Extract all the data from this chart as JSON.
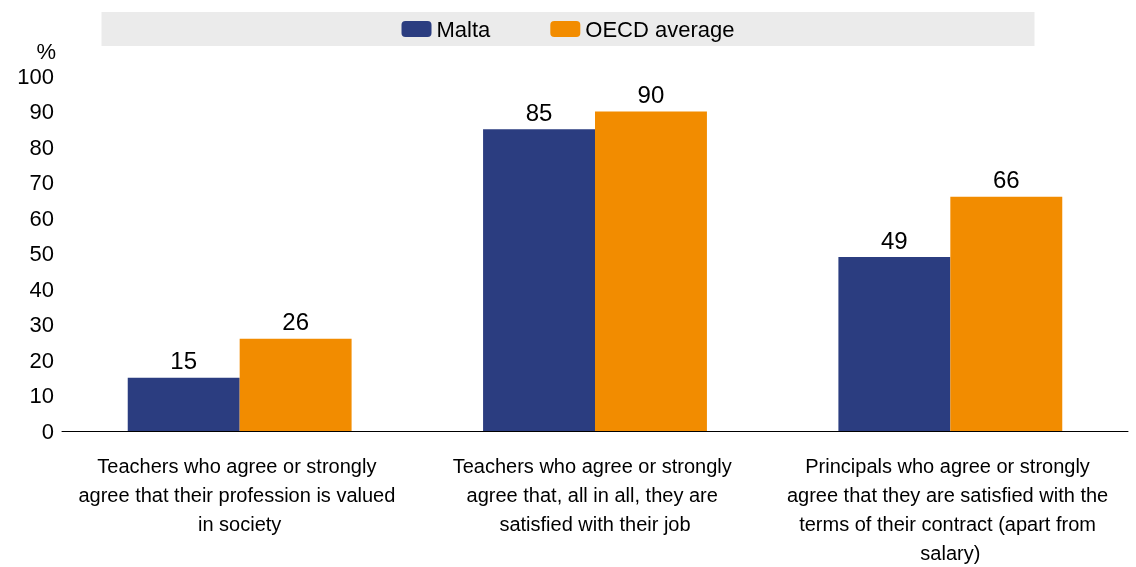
{
  "chart_data": {
    "type": "bar",
    "ylabel": "%",
    "categories": [
      "Teachers who agree or strongly agree that their profession is valued in society",
      "Teachers who agree or strongly agree that, all in all, they are satisfied with their job",
      "Principals who agree or strongly agree that they are satisfied with the terms of their contract (apart from salary)"
    ],
    "series": [
      {
        "name": "Malta",
        "color": "#2b3d80",
        "values": [
          15,
          85,
          49
        ]
      },
      {
        "name": "OECD average",
        "color": "#f28c00",
        "values": [
          26,
          90,
          66
        ]
      }
    ],
    "ylim": [
      0,
      100
    ],
    "yticks": [
      0,
      10,
      20,
      30,
      40,
      50,
      60,
      70,
      80,
      90,
      100
    ],
    "grid": false,
    "legend": "top",
    "data_labels": true
  }
}
